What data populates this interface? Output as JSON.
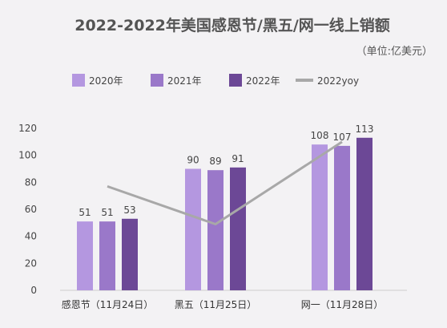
{
  "chart_data": {
    "type": "bar",
    "title": "2022-2022年美国感恩节/黑五/网一线上销额",
    "subtitle": "（单位:亿美元）",
    "categories": [
      "感恩节（11月24日）",
      "黑五（11月25日）",
      "网一（11月28日）"
    ],
    "series": [
      {
        "name": "2020年",
        "type": "bar",
        "color": "#b497e0",
        "values": [
          51,
          90,
          108
        ]
      },
      {
        "name": "2021年",
        "type": "bar",
        "color": "#9a78c9",
        "values": [
          51,
          89,
          107
        ]
      },
      {
        "name": "2022年",
        "type": "bar",
        "color": "#6c4896",
        "values": [
          53,
          91,
          113
        ]
      },
      {
        "name": "2022yoy",
        "type": "line",
        "color": "#a8a8a8",
        "values": [
          77,
          49,
          110
        ]
      }
    ],
    "ylim": [
      0,
      120
    ],
    "yticks": [
      0,
      20,
      40,
      60,
      80,
      100,
      120
    ],
    "grid": false,
    "legend_position": "top-left"
  }
}
